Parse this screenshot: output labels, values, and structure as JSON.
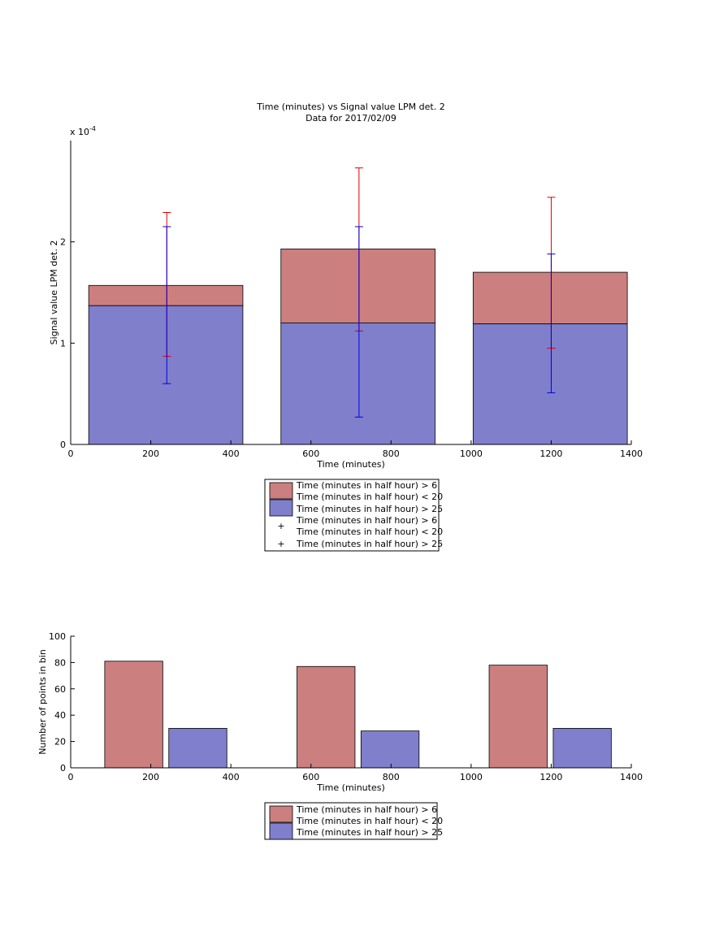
{
  "colors": {
    "red_fill": "#cc7f7f",
    "blue_fill": "#7f7fcc",
    "red_err": "#e00000",
    "blue_err": "#0000e0",
    "axis": "#000000"
  },
  "chart_data": [
    {
      "type": "bar",
      "title": "Time (minutes) vs Signal value LPM det. 2",
      "subtitle": "Data for 2017/02/09",
      "xlabel": "Time (minutes)",
      "ylabel": "Signal value LPM det. 2",
      "y_exponent_label": "x 10",
      "y_exponent_power": "-4",
      "xlim": [
        0,
        1400
      ],
      "ylim": [
        0,
        3.0
      ],
      "xticks": [
        "0",
        "200",
        "400",
        "600",
        "800",
        "1000",
        "1200",
        "1400"
      ],
      "yticks": [
        "0",
        "1",
        "2"
      ],
      "bars": [
        {
          "x0": 45,
          "x1": 430,
          "top": 1.57,
          "blue_top": 1.37
        },
        {
          "x0": 525,
          "x1": 910,
          "top": 1.93,
          "blue_top": 1.2
        },
        {
          "x0": 1005,
          "x1": 1390,
          "top": 1.7,
          "blue_top": 1.19
        }
      ],
      "errorbars": {
        "red": [
          {
            "x": 240,
            "low": 0.87,
            "high": 2.29
          },
          {
            "x": 720,
            "low": 1.12,
            "high": 2.73
          },
          {
            "x": 1200,
            "low": 0.95,
            "high": 2.44
          }
        ],
        "blue": [
          {
            "x": 240,
            "low": 0.6,
            "high": 2.15
          },
          {
            "x": 720,
            "low": 0.27,
            "high": 2.15
          },
          {
            "x": 1200,
            "low": 0.51,
            "high": 1.88
          }
        ]
      },
      "legend": [
        "Time (minutes in half hour) > 6",
        "Time (minutes in half hour) < 20",
        "Time (minutes in half hour) > 25",
        "Time (minutes in half hour) > 6",
        "Time (minutes in half hour) < 20",
        "Time (minutes in half hour) > 25"
      ],
      "legend_position": "below"
    },
    {
      "type": "bar",
      "xlabel": "Time (minutes)",
      "ylabel": "Number of points in bin",
      "xlim": [
        0,
        1400
      ],
      "ylim": [
        0,
        100
      ],
      "xticks": [
        "0",
        "200",
        "400",
        "600",
        "800",
        "1000",
        "1200",
        "1400"
      ],
      "yticks": [
        "0",
        "20",
        "40",
        "60",
        "80",
        "100"
      ],
      "series": [
        {
          "color": "red",
          "bars": [
            {
              "x0": 85,
              "x1": 230,
              "value": 81
            },
            {
              "x0": 565,
              "x1": 710,
              "value": 77
            },
            {
              "x0": 1045,
              "x1": 1190,
              "value": 78
            }
          ]
        },
        {
          "color": "blue",
          "bars": [
            {
              "x0": 245,
              "x1": 390,
              "value": 30
            },
            {
              "x0": 725,
              "x1": 870,
              "value": 28
            },
            {
              "x0": 1205,
              "x1": 1350,
              "value": 30
            }
          ]
        }
      ],
      "legend": [
        "Time (minutes in half hour) > 6",
        "Time (minutes in half hour) < 20",
        "Time (minutes in half hour) > 25"
      ],
      "legend_position": "below"
    }
  ]
}
